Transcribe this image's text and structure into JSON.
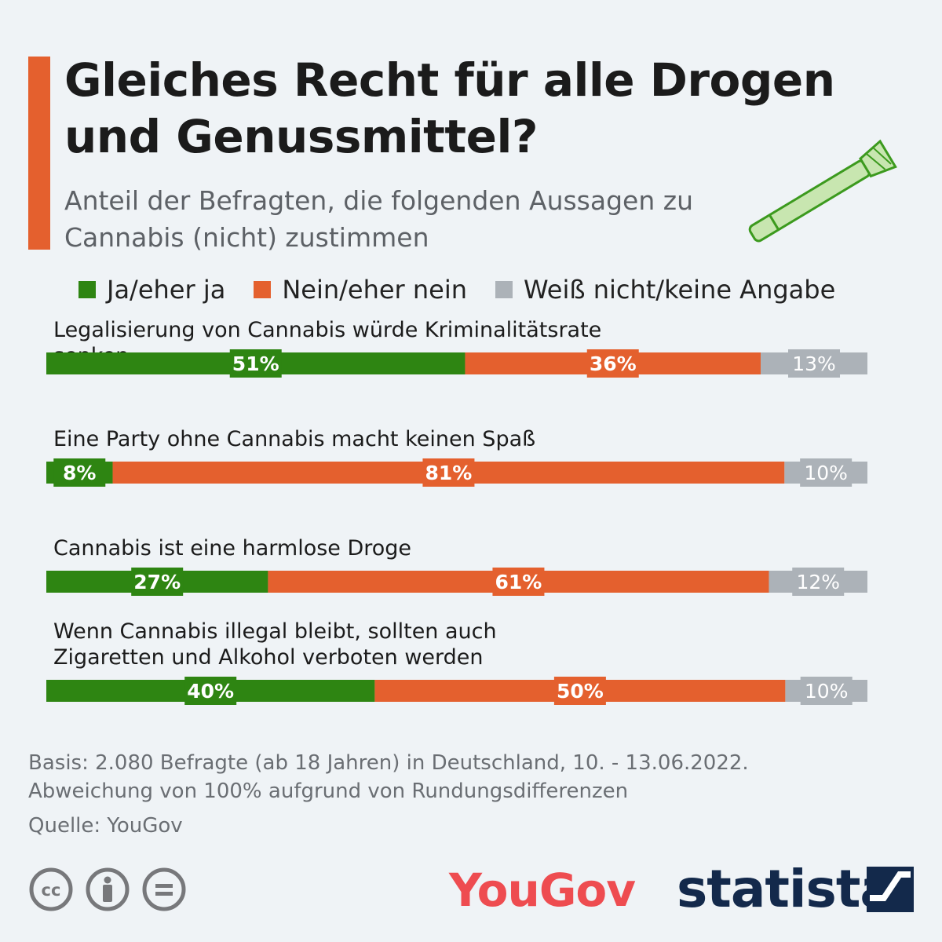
{
  "title": "Gleiches Recht für alle Drogen und Genussmittel?",
  "subtitle": "Anteil der Befragten, die folgenden Aussagen zu Cannabis (nicht) zustimmen",
  "legend": [
    {
      "label": "Ja/eher ja",
      "color": "#2e8512"
    },
    {
      "label": "Nein/eher nein",
      "color": "#e4602e"
    },
    {
      "label": "Weiß nicht/keine Angabe",
      "color": "#acb2b8"
    }
  ],
  "chart_data": {
    "type": "bar",
    "orientation": "horizontal",
    "stacked": true,
    "categories": [
      "Legalisierung von Cannabis würde Kriminalitätsrate senken",
      "Eine Party ohne Cannabis macht keinen Spaß",
      "Cannabis ist eine harmlose Droge",
      "Wenn Cannabis illegal bleibt, sollten auch Zigaretten und Alkohol verboten werden"
    ],
    "series": [
      {
        "name": "Ja/eher ja",
        "values": [
          51,
          8,
          27,
          40
        ],
        "labels": [
          "51%",
          "8%",
          "27%",
          "40%"
        ]
      },
      {
        "name": "Nein/eher nein",
        "values": [
          36,
          81,
          61,
          50
        ],
        "labels": [
          "36%",
          "81%",
          "61%",
          "50%"
        ]
      },
      {
        "name": "Weiß nicht/keine Angabe",
        "values": [
          13,
          10,
          12,
          10
        ],
        "labels": [
          "13%",
          "10%",
          "12%",
          "10%"
        ]
      }
    ],
    "unit": "%"
  },
  "footnotes": {
    "basis": "Basis: 2.080 Befragte (ab 18 Jahren) in Deutschland, 10. - 13.06.2022.",
    "rounding": "Abweichung von 100% aufgrund von Rundungsdifferenzen",
    "source": "Quelle: YouGov"
  },
  "logos": {
    "yougov": "YouGov",
    "statista": "statista"
  },
  "icons": [
    "cc-icon",
    "attribution-icon",
    "no-derivatives-icon",
    "joint-icon",
    "statista-logo-icon"
  ]
}
